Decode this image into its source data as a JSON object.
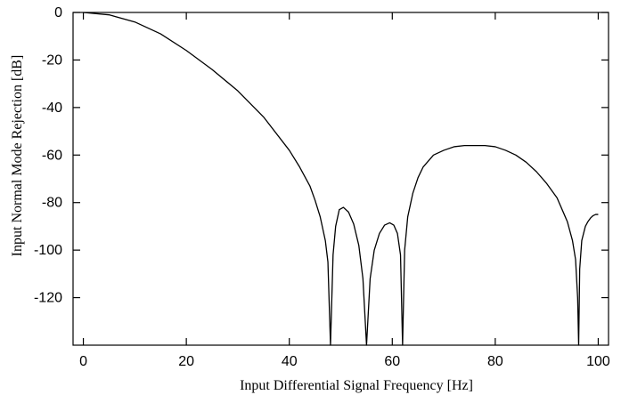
{
  "chart_data": {
    "type": "line",
    "title": "",
    "xlabel": "Input Differential Signal Frequency [Hz]",
    "ylabel": "Input Normal Mode Rejection [dB]",
    "xlim": [
      -2,
      102
    ],
    "ylim": [
      -140,
      0
    ],
    "x_ticks": [
      0,
      20,
      40,
      60,
      80,
      100
    ],
    "y_ticks": [
      0,
      -20,
      -40,
      -60,
      -80,
      -100,
      -120
    ],
    "grid": false,
    "legend": "none",
    "line_color": "#000000",
    "series": [
      {
        "x": [
          0,
          5,
          10,
          15,
          20,
          25,
          30,
          35,
          40,
          42,
          44,
          45,
          46,
          47,
          47.5,
          48,
          48.5,
          49,
          49.7,
          50.5,
          51.5,
          52.5,
          53.5,
          54.3,
          55,
          55.7,
          56.5,
          57.5,
          58.5,
          59.5,
          60.3,
          61,
          61.6,
          62,
          62.4,
          63,
          64,
          65,
          66,
          68,
          70,
          72,
          74,
          76,
          78,
          80,
          82,
          84,
          86,
          88,
          90,
          92,
          94,
          95,
          95.6,
          96,
          96.2,
          96.4,
          96.8,
          97.5,
          98,
          98.5,
          99,
          99.5,
          100
        ],
        "y": [
          0,
          -1,
          -4,
          -9,
          -16,
          -24,
          -33,
          -44,
          -58,
          -65,
          -73,
          -79,
          -86,
          -96,
          -105,
          -140,
          -102,
          -90,
          -83,
          -82,
          -84,
          -89,
          -98,
          -112,
          -140,
          -112,
          -100,
          -93,
          -89.5,
          -88.5,
          -89.5,
          -93,
          -102,
          -140,
          -100,
          -86,
          -76,
          -69.5,
          -65,
          -60,
          -58,
          -56.5,
          -56,
          -56,
          -56,
          -56.5,
          -58,
          -60,
          -63,
          -67,
          -72,
          -78,
          -88,
          -96,
          -104,
          -120,
          -140,
          -108,
          -96,
          -90,
          -88,
          -86.5,
          -85.5,
          -85,
          -85
        ]
      }
    ]
  }
}
